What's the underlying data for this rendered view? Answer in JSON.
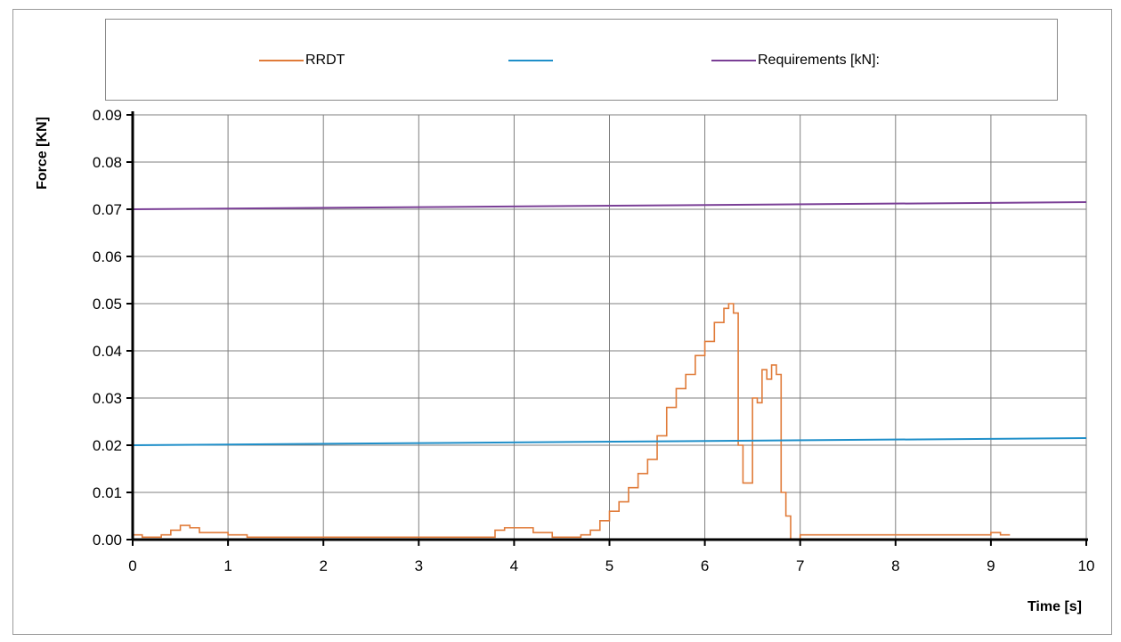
{
  "chart_data": {
    "type": "line",
    "xlabel": "Time [s]",
    "ylabel": "Force [KN]",
    "xlim": [
      0,
      10
    ],
    "ylim": [
      0,
      0.09
    ],
    "x_ticks": [
      "0",
      "1",
      "2",
      "3",
      "4",
      "5",
      "6",
      "7",
      "8",
      "9",
      "10"
    ],
    "y_ticks": [
      "0.00",
      "0.01",
      "0.02",
      "0.03",
      "0.04",
      "0.05",
      "0.06",
      "0.07",
      "0.08",
      "0.09"
    ],
    "grid": true,
    "legend_position": "top",
    "series": [
      {
        "name": "RRDT",
        "color": "#e07b39",
        "x": [
          0.0,
          0.1,
          0.3,
          0.4,
          0.5,
          0.6,
          0.7,
          0.8,
          1.0,
          1.2,
          1.5,
          2.0,
          3.0,
          3.7,
          3.8,
          3.9,
          4.1,
          4.2,
          4.4,
          4.7,
          4.8,
          4.9,
          5.0,
          5.1,
          5.2,
          5.3,
          5.4,
          5.5,
          5.6,
          5.7,
          5.8,
          5.9,
          6.0,
          6.1,
          6.2,
          6.25,
          6.3,
          6.35,
          6.4,
          6.5,
          6.55,
          6.6,
          6.65,
          6.7,
          6.75,
          6.8,
          6.85,
          6.9,
          7.0,
          7.5,
          8.0,
          8.5,
          9.0,
          9.1,
          9.2
        ],
        "y": [
          0.001,
          0.0005,
          0.001,
          0.002,
          0.003,
          0.0025,
          0.0015,
          0.0015,
          0.001,
          0.0005,
          0.0005,
          0.0005,
          0.0005,
          0.0005,
          0.002,
          0.0025,
          0.0025,
          0.0015,
          0.0005,
          0.001,
          0.002,
          0.004,
          0.006,
          0.008,
          0.011,
          0.014,
          0.017,
          0.022,
          0.028,
          0.032,
          0.035,
          0.039,
          0.042,
          0.046,
          0.049,
          0.05,
          0.048,
          0.02,
          0.012,
          0.03,
          0.029,
          0.036,
          0.034,
          0.037,
          0.035,
          0.01,
          0.005,
          0.0,
          0.001,
          0.001,
          0.001,
          0.001,
          0.0015,
          0.001,
          0.001
        ]
      },
      {
        "name": "",
        "color": "#1f8fc9",
        "x": [
          0,
          10
        ],
        "y": [
          0.02,
          0.0215
        ]
      },
      {
        "name": "Requirements [kN]:",
        "color": "#7a3f96",
        "x": [
          0,
          10
        ],
        "y": [
          0.07,
          0.0715
        ]
      }
    ]
  }
}
